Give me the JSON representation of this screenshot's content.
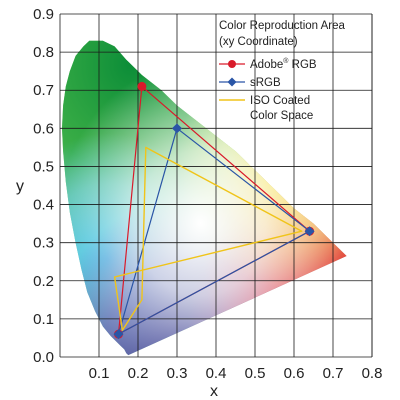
{
  "chart_data": {
    "type": "scatter",
    "xlabel": "x",
    "ylabel": "y",
    "xlim": [
      0,
      0.8
    ],
    "ylim": [
      0,
      0.9
    ],
    "x_ticks": [
      "0.1",
      "0.2",
      "0.3",
      "0.4",
      "0.5",
      "0.6",
      "0.7",
      "0.8"
    ],
    "y_ticks": [
      "0.0",
      "0.1",
      "0.2",
      "0.3",
      "0.4",
      "0.5",
      "0.6",
      "0.7",
      "0.8",
      "0.9"
    ],
    "grid": true,
    "legend": {
      "title_line1": "Color Reproduction Area",
      "title_line2": "(xy Coordinate)",
      "placement": "top-right"
    },
    "series": [
      {
        "name": "Adobe® RGB",
        "name_base": "Adobe",
        "name_sup": "®",
        "name_rest": " RGB",
        "color": "#d91a2a",
        "marker": "circle",
        "points": [
          [
            0.64,
            0.33
          ],
          [
            0.21,
            0.71
          ],
          [
            0.15,
            0.06
          ]
        ]
      },
      {
        "name": "sRGB",
        "color": "#2a55a6",
        "marker": "diamond",
        "points": [
          [
            0.64,
            0.33
          ],
          [
            0.3,
            0.6
          ],
          [
            0.15,
            0.06
          ]
        ]
      },
      {
        "name": "ISO Coated Color Space",
        "name_line1": "ISO Coated",
        "name_line2": "Color Space",
        "color": "#f0c419",
        "marker": "none",
        "points": [
          [
            0.62,
            0.33
          ],
          [
            0.22,
            0.55
          ],
          [
            0.21,
            0.15
          ],
          [
            0.16,
            0.07
          ],
          [
            0.14,
            0.21
          ]
        ]
      }
    ],
    "locus": [
      [
        0.175,
        0.005
      ],
      [
        0.17,
        0.01
      ],
      [
        0.165,
        0.02
      ],
      [
        0.155,
        0.03
      ],
      [
        0.145,
        0.04
      ],
      [
        0.13,
        0.055
      ],
      [
        0.11,
        0.08
      ],
      [
        0.09,
        0.12
      ],
      [
        0.07,
        0.17
      ],
      [
        0.055,
        0.23
      ],
      [
        0.04,
        0.3
      ],
      [
        0.025,
        0.38
      ],
      [
        0.015,
        0.46
      ],
      [
        0.008,
        0.54
      ],
      [
        0.005,
        0.6
      ],
      [
        0.008,
        0.66
      ],
      [
        0.015,
        0.71
      ],
      [
        0.025,
        0.75
      ],
      [
        0.04,
        0.79
      ],
      [
        0.06,
        0.815
      ],
      [
        0.075,
        0.83
      ],
      [
        0.11,
        0.83
      ],
      [
        0.14,
        0.815
      ],
      [
        0.17,
        0.78
      ],
      [
        0.21,
        0.74
      ],
      [
        0.26,
        0.7
      ],
      [
        0.3,
        0.66
      ],
      [
        0.35,
        0.62
      ],
      [
        0.4,
        0.58
      ],
      [
        0.45,
        0.54
      ],
      [
        0.5,
        0.49
      ],
      [
        0.55,
        0.44
      ],
      [
        0.6,
        0.39
      ],
      [
        0.65,
        0.35
      ],
      [
        0.7,
        0.3
      ],
      [
        0.735,
        0.265
      ]
    ]
  }
}
